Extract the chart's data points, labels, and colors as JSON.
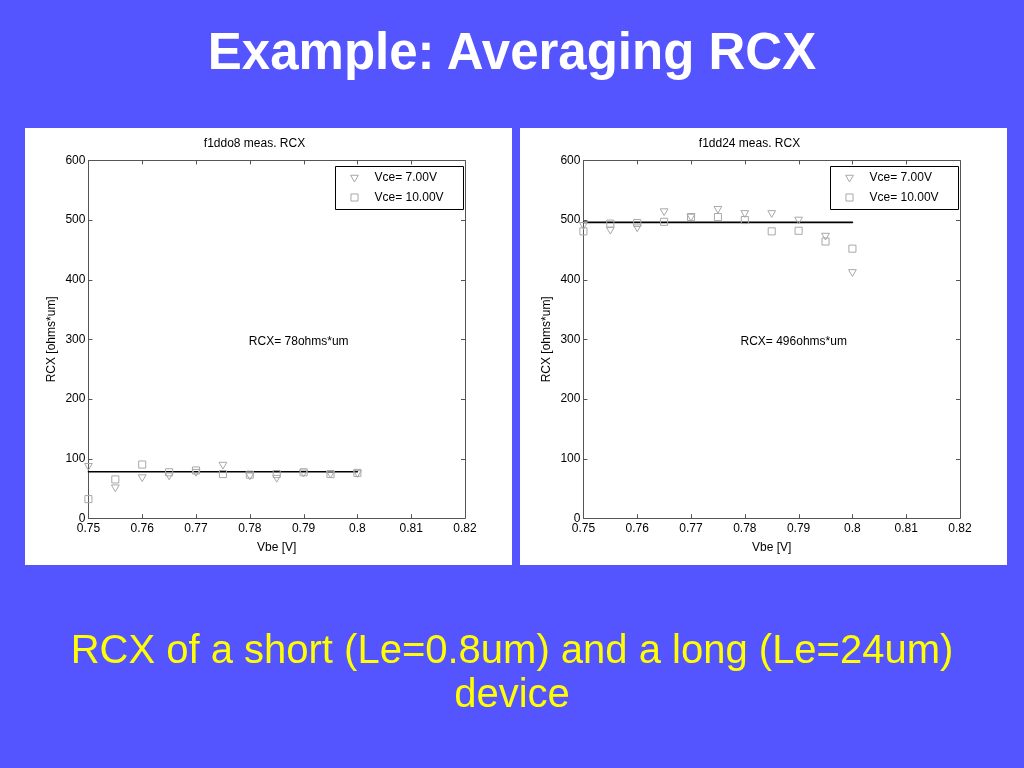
{
  "chart_data": [
    {
      "type": "other",
      "title": "Example: Averaging RCX"
    },
    {
      "type": "scatter",
      "title": "f1ddo8 meas. RCX",
      "xlabel": "Vbe [V]",
      "ylabel": "RCX [ohms*um]",
      "xlim": [
        0.75,
        0.82
      ],
      "ylim": [
        0,
        600
      ],
      "xticks": [
        0.75,
        0.76,
        0.77,
        0.78,
        0.79,
        0.8,
        0.81,
        0.82
      ],
      "yticks": [
        0,
        100,
        200,
        300,
        400,
        500,
        600
      ],
      "legend": "top right",
      "x": [
        0.75,
        0.755,
        0.76,
        0.765,
        0.77,
        0.775,
        0.78,
        0.785,
        0.79,
        0.795,
        0.8
      ],
      "series": [
        {
          "name": "Vce= 7.00V",
          "color": "#a8a8a8",
          "marker": "triangle",
          "values": [
            88,
            52,
            69,
            72,
            78,
            90,
            72,
            68,
            77,
            75,
            76
          ]
        },
        {
          "name": "Vce= 10.00V",
          "color": "#a8a8a8",
          "marker": "square",
          "values": [
            32,
            65,
            90,
            77,
            80,
            74,
            73,
            74,
            77,
            74,
            76
          ]
        },
        {
          "type": "line",
          "color": "#000000",
          "marker": "none",
          "values": [
            78,
            78,
            78,
            78,
            78,
            78,
            78,
            78,
            78,
            78,
            78
          ]
        }
      ],
      "annotations": [
        "RCX= 78ohms*um"
      ]
    },
    {
      "type": "scatter",
      "title": "f1dd24 meas. RCX",
      "xlabel": "Vbe [V]",
      "ylabel": "RCX [ohms*um]",
      "xlim": [
        0.75,
        0.82
      ],
      "ylim": [
        0,
        600
      ],
      "xticks": [
        0.75,
        0.76,
        0.77,
        0.78,
        0.79,
        0.8,
        0.81,
        0.82
      ],
      "yticks": [
        0,
        100,
        200,
        300,
        400,
        500,
        600
      ],
      "legend": "top right",
      "x": [
        0.75,
        0.755,
        0.76,
        0.765,
        0.77,
        0.775,
        0.78,
        0.785,
        0.79,
        0.795,
        0.8
      ],
      "series": [
        {
          "name": "Vce= 7.00V",
          "color": "#a8a8a8",
          "marker": "triangle",
          "values": [
            492,
            484,
            488,
            515,
            506,
            519,
            512,
            512,
            501,
            474,
            413
          ]
        },
        {
          "name": "Vce= 10.00V",
          "color": "#a8a8a8",
          "marker": "square",
          "values": [
            481,
            494,
            495,
            497,
            505,
            505,
            500,
            481,
            482,
            464,
            452
          ]
        },
        {
          "type": "line",
          "color": "#000000",
          "marker": "none",
          "values": [
            496,
            496,
            496,
            496,
            496,
            496,
            496,
            496,
            496,
            496,
            496
          ]
        }
      ],
      "annotations": [
        "RCX= 496ohms*um"
      ]
    },
    {
      "type": "other",
      "annotations": [
        "RCX of a short (Le=0.8um) and a long (Le=24um) device"
      ]
    }
  ]
}
